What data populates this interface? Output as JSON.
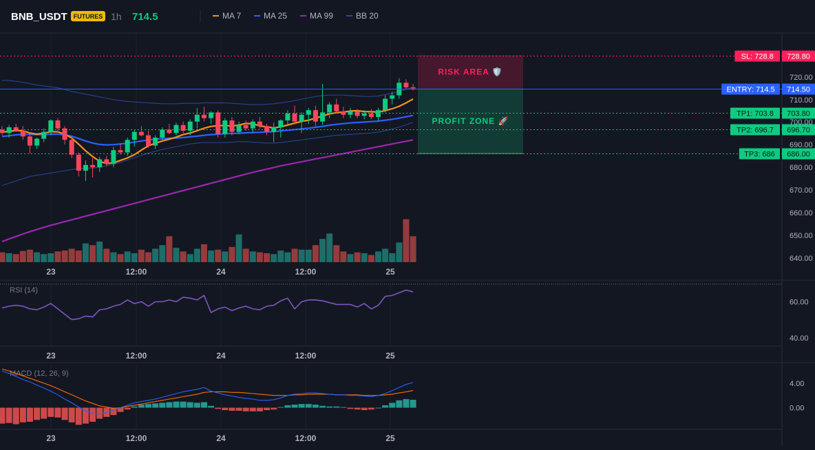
{
  "header": {
    "symbol": "BNB_USDT",
    "badge": "FUTURES",
    "interval": "1h",
    "price": "714.5",
    "legend": [
      {
        "label": "MA 7",
        "color": "#f7931a"
      },
      {
        "label": "MA 25",
        "color": "#2962ff"
      },
      {
        "label": "MA 99",
        "color": "#9c27b0"
      },
      {
        "label": "BB 20",
        "color": "#2b4c9e"
      }
    ]
  },
  "colors": {
    "background": "#131722",
    "up": "#26a69a",
    "up_candle": "#0ecb81",
    "down": "#ef5350",
    "down_candle": "#f6465d",
    "sl": "#ff1f5a",
    "entry": "#2962ff",
    "tp": "#0ecb81",
    "rsi": "#7e57c2",
    "macd": "#2962ff",
    "signal": "#ff6d00"
  },
  "price_axis": {
    "ticks": [
      "720.00",
      "710.00",
      "700.00",
      "690.00",
      "680.00",
      "670.00",
      "660.00",
      "650.00",
      "640.00"
    ]
  },
  "time_axis": {
    "labels": [
      "23",
      "12:00",
      "24",
      "12:00",
      "25"
    ]
  },
  "levels": [
    {
      "id": "sl",
      "tag": "SL: 728.8",
      "value": "728.80",
      "price": 728.8
    },
    {
      "id": "entry",
      "tag": "ENTRY: 714.5",
      "value": "714.50",
      "price": 714.5
    },
    {
      "id": "tp1",
      "tag": "TP1: 703.8",
      "value": "703.80",
      "price": 703.8
    },
    {
      "id": "tp2",
      "tag": "TP2: 696.7",
      "value": "696.70",
      "price": 696.7
    },
    {
      "id": "tp3",
      "tag": "TP3: 686",
      "value": "686.00",
      "price": 686.0
    }
  ],
  "zones": {
    "risk": "RISK AREA 🛡️",
    "profit": "PROFIT ZONE 🚀"
  },
  "rsi": {
    "label": "RSI (14)",
    "ticks": [
      "60.00",
      "40.00"
    ],
    "values": [
      53,
      55,
      56,
      55,
      52,
      51,
      54,
      58,
      52,
      46,
      40,
      41,
      44,
      43,
      51,
      52,
      55,
      57,
      62,
      58,
      60,
      55,
      60,
      60,
      62,
      60,
      65,
      64,
      62,
      67,
      48,
      52,
      54,
      50,
      53,
      55,
      52,
      51,
      55,
      56,
      61,
      64,
      52,
      60,
      62,
      62,
      61,
      59,
      57,
      57,
      57,
      54,
      58,
      52,
      56,
      66,
      67,
      70,
      73,
      71
    ]
  },
  "macd": {
    "label": "MACD (12, 26, 9)",
    "ticks": [
      "4.00",
      "0.00"
    ],
    "hist": [
      -2.6,
      -2.5,
      -2.7,
      -2.4,
      -2.3,
      -2.0,
      -1.8,
      -1.5,
      -1.6,
      -2.0,
      -2.4,
      -2.8,
      -2.6,
      -2.3,
      -1.8,
      -1.5,
      -1.2,
      -0.7,
      -0.3,
      0.2,
      0.5,
      0.6,
      0.7,
      0.8,
      0.9,
      1.0,
      1.0,
      0.9,
      0.8,
      0.9,
      0.3,
      -0.2,
      -0.4,
      -0.5,
      -0.5,
      -0.6,
      -0.6,
      -0.6,
      -0.4,
      -0.3,
      0.1,
      0.4,
      0.5,
      0.6,
      0.6,
      0.5,
      0.3,
      0.2,
      0.2,
      0.1,
      -0.2,
      -0.3,
      -0.4,
      -0.3,
      0.0,
      0.4,
      0.8,
      1.2,
      1.4,
      1.3
    ],
    "macd_line": [
      6.0,
      5.6,
      5.1,
      4.6,
      4.2,
      3.7,
      3.2,
      2.7,
      2.1,
      1.4,
      0.8,
      0.1,
      -0.5,
      -0.9,
      -1.0,
      -0.8,
      -0.4,
      0.0,
      0.4,
      0.8,
      1.0,
      1.2,
      1.4,
      1.7,
      2.0,
      2.3,
      2.6,
      2.8,
      3.0,
      3.3,
      2.7,
      2.4,
      2.1,
      1.9,
      1.7,
      1.5,
      1.4,
      1.2,
      1.2,
      1.3,
      1.6,
      2.0,
      2.2,
      2.3,
      2.4,
      2.4,
      2.3,
      2.2,
      2.1,
      2.1,
      2.0,
      2.0,
      1.9,
      1.8,
      2.0,
      2.3,
      2.8,
      3.3,
      3.8,
      4.1
    ],
    "signal_line": [
      6.3,
      6.0,
      5.6,
      5.2,
      4.8,
      4.4,
      4.0,
      3.6,
      3.1,
      2.6,
      2.1,
      1.6,
      1.1,
      0.7,
      0.3,
      0.1,
      -0.1,
      0.0,
      0.2,
      0.4,
      0.6,
      0.8,
      1.0,
      1.2,
      1.4,
      1.6,
      1.8,
      2.0,
      2.2,
      2.5,
      2.6,
      2.6,
      2.6,
      2.5,
      2.5,
      2.4,
      2.3,
      2.2,
      2.1,
      2.0,
      2.0,
      2.0,
      2.1,
      2.1,
      2.2,
      2.2,
      2.2,
      2.2,
      2.1,
      2.1,
      2.1,
      2.1,
      2.0,
      2.0,
      2.0,
      2.1,
      2.2,
      2.4,
      2.6,
      2.8
    ]
  },
  "candles": [
    {
      "o": 696.5,
      "h": 698.0,
      "l": 694.0,
      "c": 695.0
    },
    {
      "o": 695.0,
      "h": 698.5,
      "l": 693.0,
      "c": 697.5
    },
    {
      "o": 697.5,
      "h": 699.0,
      "l": 695.5,
      "c": 696.0
    },
    {
      "o": 696.0,
      "h": 698.0,
      "l": 692.0,
      "c": 693.5
    },
    {
      "o": 693.5,
      "h": 694.5,
      "l": 686.0,
      "c": 689.5
    },
    {
      "o": 689.5,
      "h": 693.0,
      "l": 688.0,
      "c": 692.5
    },
    {
      "o": 692.5,
      "h": 697.0,
      "l": 691.0,
      "c": 695.5
    },
    {
      "o": 695.5,
      "h": 701.0,
      "l": 694.0,
      "c": 700.5
    },
    {
      "o": 700.5,
      "h": 701.5,
      "l": 696.0,
      "c": 697.0
    },
    {
      "o": 697.0,
      "h": 698.0,
      "l": 690.0,
      "c": 692.0
    },
    {
      "o": 692.0,
      "h": 693.0,
      "l": 684.0,
      "c": 685.5
    },
    {
      "o": 685.5,
      "h": 686.5,
      "l": 676.0,
      "c": 678.5
    },
    {
      "o": 678.5,
      "h": 683.0,
      "l": 674.0,
      "c": 681.0
    },
    {
      "o": 681.0,
      "h": 684.0,
      "l": 675.5,
      "c": 680.0
    },
    {
      "o": 680.0,
      "h": 684.5,
      "l": 678.0,
      "c": 683.5
    },
    {
      "o": 683.5,
      "h": 685.0,
      "l": 680.5,
      "c": 681.5
    },
    {
      "o": 681.5,
      "h": 689.0,
      "l": 680.0,
      "c": 687.5
    },
    {
      "o": 687.5,
      "h": 690.5,
      "l": 685.5,
      "c": 686.5
    },
    {
      "o": 686.5,
      "h": 693.0,
      "l": 685.0,
      "c": 692.0
    },
    {
      "o": 692.0,
      "h": 696.5,
      "l": 689.0,
      "c": 695.5
    },
    {
      "o": 695.5,
      "h": 698.0,
      "l": 693.5,
      "c": 694.0
    },
    {
      "o": 694.0,
      "h": 696.0,
      "l": 688.5,
      "c": 689.5
    },
    {
      "o": 689.5,
      "h": 694.0,
      "l": 688.0,
      "c": 693.0
    },
    {
      "o": 693.0,
      "h": 697.5,
      "l": 692.0,
      "c": 696.5
    },
    {
      "o": 696.5,
      "h": 699.0,
      "l": 694.5,
      "c": 695.0
    },
    {
      "o": 695.0,
      "h": 699.5,
      "l": 694.0,
      "c": 698.5
    },
    {
      "o": 698.5,
      "h": 700.0,
      "l": 695.0,
      "c": 696.0
    },
    {
      "o": 696.0,
      "h": 701.0,
      "l": 694.0,
      "c": 700.0
    },
    {
      "o": 700.0,
      "h": 706.0,
      "l": 697.0,
      "c": 703.0
    },
    {
      "o": 703.0,
      "h": 706.5,
      "l": 700.0,
      "c": 701.5
    },
    {
      "o": 701.5,
      "h": 704.5,
      "l": 699.0,
      "c": 704.0
    },
    {
      "o": 704.0,
      "h": 705.0,
      "l": 693.0,
      "c": 694.5
    },
    {
      "o": 694.5,
      "h": 701.5,
      "l": 693.0,
      "c": 700.5
    },
    {
      "o": 700.5,
      "h": 702.0,
      "l": 694.0,
      "c": 695.5
    },
    {
      "o": 695.5,
      "h": 700.0,
      "l": 694.5,
      "c": 698.5
    },
    {
      "o": 698.5,
      "h": 700.5,
      "l": 696.0,
      "c": 697.0
    },
    {
      "o": 697.0,
      "h": 701.0,
      "l": 695.0,
      "c": 700.0
    },
    {
      "o": 700.0,
      "h": 702.0,
      "l": 697.0,
      "c": 698.0
    },
    {
      "o": 698.0,
      "h": 699.0,
      "l": 694.0,
      "c": 695.5
    },
    {
      "o": 695.5,
      "h": 699.5,
      "l": 691.0,
      "c": 697.5
    },
    {
      "o": 697.5,
      "h": 701.0,
      "l": 693.0,
      "c": 700.5
    },
    {
      "o": 700.5,
      "h": 705.0,
      "l": 698.0,
      "c": 703.5
    },
    {
      "o": 703.5,
      "h": 707.0,
      "l": 699.0,
      "c": 700.0
    },
    {
      "o": 700.0,
      "h": 704.0,
      "l": 695.0,
      "c": 703.0
    },
    {
      "o": 703.0,
      "h": 706.0,
      "l": 699.0,
      "c": 705.0
    },
    {
      "o": 705.0,
      "h": 707.0,
      "l": 698.0,
      "c": 700.0
    },
    {
      "o": 700.0,
      "h": 716.5,
      "l": 698.5,
      "c": 704.0
    },
    {
      "o": 704.0,
      "h": 708.5,
      "l": 701.5,
      "c": 707.5
    },
    {
      "o": 707.5,
      "h": 710.0,
      "l": 703.5,
      "c": 704.5
    },
    {
      "o": 704.5,
      "h": 706.5,
      "l": 701.5,
      "c": 703.0
    },
    {
      "o": 703.0,
      "h": 706.0,
      "l": 701.5,
      "c": 704.5
    },
    {
      "o": 704.5,
      "h": 705.5,
      "l": 701.5,
      "c": 702.5
    },
    {
      "o": 702.5,
      "h": 705.0,
      "l": 701.0,
      "c": 703.5
    },
    {
      "o": 703.5,
      "h": 705.5,
      "l": 701.0,
      "c": 702.0
    },
    {
      "o": 702.0,
      "h": 706.0,
      "l": 700.5,
      "c": 705.0
    },
    {
      "o": 705.0,
      "h": 711.5,
      "l": 704.0,
      "c": 710.0
    },
    {
      "o": 710.0,
      "h": 713.0,
      "l": 707.5,
      "c": 711.5
    },
    {
      "o": 711.5,
      "h": 719.0,
      "l": 710.0,
      "c": 717.0
    },
    {
      "o": 717.0,
      "h": 718.5,
      "l": 714.0,
      "c": 715.0
    },
    {
      "o": 715.0,
      "h": 716.5,
      "l": 713.5,
      "c": 714.5
    }
  ],
  "volumes": [
    22,
    20,
    18,
    25,
    28,
    22,
    18,
    20,
    24,
    26,
    30,
    26,
    42,
    38,
    46,
    30,
    22,
    18,
    24,
    20,
    28,
    22,
    30,
    38,
    58,
    32,
    24,
    18,
    30,
    40,
    26,
    28,
    24,
    34,
    62,
    30,
    24,
    22,
    20,
    18,
    26,
    22,
    30,
    28,
    28,
    38,
    52,
    64,
    38,
    24,
    18,
    22,
    20,
    16,
    24,
    30,
    20,
    44,
    96,
    58
  ],
  "ma7": [
    695.4,
    695.7,
    696.1,
    695.9,
    695.0,
    694.5,
    694.9,
    695.6,
    695.5,
    694.5,
    692.8,
    690.1,
    687.2,
    684.7,
    682.6,
    681.6,
    682.0,
    683.0,
    684.1,
    685.5,
    687.5,
    689.4,
    690.5,
    691.5,
    692.3,
    693.2,
    694.3,
    695.0,
    696.0,
    697.1,
    697.9,
    698.2,
    698.3,
    698.0,
    698.5,
    699.2,
    699.0,
    698.1,
    697.7,
    697.2,
    697.7,
    698.5,
    699.3,
    700.1,
    700.6,
    701.5,
    702.4,
    703.4,
    703.9,
    704.2,
    704.6,
    704.8,
    704.4,
    704.3,
    704.2,
    704.8,
    705.6,
    706.7,
    708.2,
    709.9
  ],
  "ma25": [
    693.5,
    693.8,
    694.2,
    694.4,
    694.4,
    694.3,
    694.3,
    694.5,
    694.5,
    694.2,
    693.6,
    692.6,
    691.5,
    690.6,
    690.0,
    689.8,
    689.9,
    690.2,
    690.5,
    691.0,
    691.5,
    692.0,
    692.3,
    692.5,
    692.7,
    692.8,
    693.0,
    693.3,
    693.6,
    694.0,
    694.3,
    694.5,
    694.7,
    694.8,
    694.9,
    695.1,
    695.2,
    695.3,
    695.5,
    695.6,
    695.9,
    696.2,
    696.5,
    696.8,
    697.1,
    697.5,
    697.9,
    698.4,
    698.8,
    699.1,
    699.4,
    699.6,
    699.8,
    700.0,
    700.2,
    700.6,
    701.0,
    701.5,
    702.1,
    702.7
  ],
  "ma99": [
    647.5,
    648.6,
    649.7,
    650.8,
    651.8,
    652.8,
    653.7,
    654.6,
    655.4,
    656.2,
    657.0,
    657.8,
    658.6,
    659.4,
    660.2,
    661.0,
    661.8,
    662.6,
    663.4,
    664.2,
    665.0,
    665.8,
    666.6,
    667.4,
    668.2,
    669.0,
    669.8,
    670.6,
    671.4,
    672.2,
    673.0,
    673.8,
    674.6,
    675.4,
    676.2,
    677.0,
    677.8,
    678.5,
    679.2,
    679.9,
    680.6,
    681.2,
    681.8,
    682.4,
    683.0,
    683.6,
    684.2,
    684.8,
    685.4,
    686.0,
    686.6,
    687.2,
    687.8,
    688.4,
    689.0,
    689.6,
    690.2,
    690.8,
    691.4,
    692.0
  ],
  "bb_upper": [
    718,
    718,
    717.6,
    717.2,
    716.6,
    716.0,
    715.6,
    715.2,
    714.8,
    714.0,
    713.2,
    712.6,
    712.0,
    711.4,
    710.8,
    710.2,
    709.6,
    709.2,
    708.8,
    708.6,
    708.4,
    708.2,
    708.0,
    707.8,
    707.8,
    707.8,
    708.0,
    708.0,
    708.0,
    708.2,
    708.2,
    708.2,
    708.2,
    708.0,
    707.8,
    707.6,
    707.4,
    707.4,
    707.6,
    707.8,
    708.2,
    708.6,
    709.2,
    709.8,
    710.4,
    711.0,
    711.4,
    711.6,
    711.6,
    711.6,
    711.4,
    711.2,
    711.0,
    711.0,
    711.2,
    711.8,
    712.4,
    713.2,
    714.2,
    715.0
  ],
  "bb_lower": [
    672,
    673,
    674,
    675,
    676,
    676.5,
    677,
    677.5,
    678,
    678.5,
    679,
    679.4,
    679.6,
    679.6,
    680,
    680.6,
    681.4,
    682.2,
    683.2,
    684.2,
    685.2,
    686.2,
    687.0,
    687.8,
    688.4,
    689.0,
    689.6,
    690.2,
    690.6,
    690.8,
    690.8,
    690.8,
    690.8,
    691.0,
    691.2,
    691.2,
    691.0,
    690.8,
    690.6,
    690.6,
    690.8,
    691.2,
    691.6,
    692.0,
    692.4,
    692.8,
    693.2,
    693.6,
    694.0,
    694.2,
    694.4,
    694.6,
    694.8,
    695.0,
    695.4,
    696.0,
    696.8,
    697.6,
    698.6,
    699.6
  ]
}
